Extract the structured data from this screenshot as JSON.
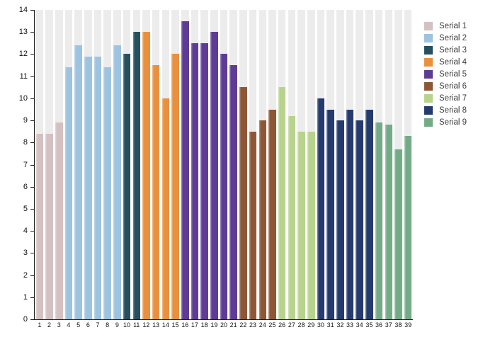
{
  "chart_data": {
    "type": "bar",
    "title": "",
    "xlabel": "",
    "ylabel": "",
    "ylim": [
      0,
      14
    ],
    "yticks": [
      0,
      1,
      2,
      3,
      4,
      5,
      6,
      7,
      8,
      9,
      10,
      11,
      12,
      13,
      14
    ],
    "categories": [
      1,
      2,
      3,
      4,
      5,
      6,
      7,
      8,
      9,
      10,
      11,
      12,
      13,
      14,
      15,
      16,
      17,
      18,
      19,
      20,
      21,
      22,
      23,
      24,
      25,
      26,
      27,
      28,
      29,
      30,
      31,
      32,
      33,
      34,
      35,
      36,
      37,
      38,
      39
    ],
    "grid": "column-bands",
    "column_band_color": "#ececec",
    "axis_color": "#1a1a1a",
    "legend_position": "right",
    "series": [
      {
        "name": "Serial 1",
        "color": "#d5c0c1",
        "x": [
          1,
          2,
          3
        ],
        "values": [
          8.4,
          8.4,
          8.9
        ]
      },
      {
        "name": "Serial 2",
        "color": "#9dc3e0",
        "x": [
          4,
          5,
          6,
          7,
          8,
          9
        ],
        "values": [
          11.4,
          12.4,
          11.9,
          11.9,
          11.4,
          12.4
        ]
      },
      {
        "name": "Serial 3",
        "color": "#26505e",
        "x": [
          10,
          11
        ],
        "values": [
          12.0,
          13.0
        ]
      },
      {
        "name": "Serial 4",
        "color": "#e9903e",
        "x": [
          12,
          13,
          14,
          15
        ],
        "values": [
          13.0,
          11.5,
          10.0,
          12.0
        ]
      },
      {
        "name": "Serial 5",
        "color": "#5e3c96",
        "x": [
          16,
          17,
          18,
          19,
          20,
          21
        ],
        "values": [
          13.5,
          12.5,
          12.5,
          13.0,
          12.0,
          11.5
        ]
      },
      {
        "name": "Serial 6",
        "color": "#8d5736",
        "x": [
          22,
          23,
          24,
          25
        ],
        "values": [
          10.5,
          8.5,
          9.0,
          9.5
        ]
      },
      {
        "name": "Serial 7",
        "color": "#b7d38c",
        "x": [
          26,
          27,
          28,
          29
        ],
        "values": [
          10.5,
          9.2,
          8.5,
          8.5
        ]
      },
      {
        "name": "Serial 8",
        "color": "#253a6d",
        "x": [
          30,
          31,
          32,
          33,
          34,
          35
        ],
        "values": [
          10.0,
          9.5,
          9.0,
          9.5,
          9.0,
          9.5
        ]
      },
      {
        "name": "Serial 9",
        "color": "#74ab87",
        "x": [
          36,
          37,
          38,
          39
        ],
        "values": [
          8.9,
          8.8,
          7.7,
          8.3
        ]
      }
    ]
  }
}
